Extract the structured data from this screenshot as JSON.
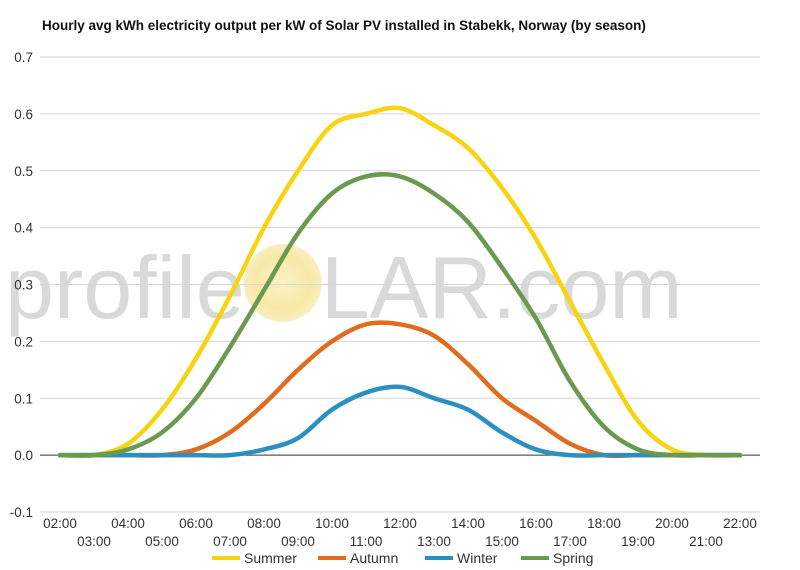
{
  "chart_data": {
    "type": "line",
    "title": "Hourly avg kWh electricity output per kW of Solar PV installed in Stabekk, Norway (by season)",
    "xlabel": "",
    "ylabel": "",
    "ylim": [
      -0.1,
      0.7
    ],
    "yticks": [
      -0.1,
      0.0,
      0.1,
      0.2,
      0.3,
      0.4,
      0.5,
      0.6,
      0.7
    ],
    "ytick_labels": [
      "-0.1",
      "0.0",
      "0.1",
      "0.2",
      "0.3",
      "0.4",
      "0.5",
      "0.6",
      "0.7"
    ],
    "x": [
      "02:00",
      "03:00",
      "04:00",
      "05:00",
      "06:00",
      "07:00",
      "08:00",
      "09:00",
      "10:00",
      "11:00",
      "12:00",
      "13:00",
      "14:00",
      "15:00",
      "16:00",
      "17:00",
      "18:00",
      "19:00",
      "20:00",
      "21:00",
      "22:00"
    ],
    "grid": true,
    "legend_position": "bottom",
    "series": [
      {
        "name": "Summer",
        "color": "#f7d40f",
        "values": [
          0.0,
          0.0,
          0.02,
          0.08,
          0.17,
          0.28,
          0.4,
          0.5,
          0.58,
          0.6,
          0.61,
          0.58,
          0.54,
          0.47,
          0.38,
          0.27,
          0.16,
          0.06,
          0.01,
          0.0,
          0.0
        ]
      },
      {
        "name": "Autumn",
        "color": "#e06c1e",
        "values": [
          0.0,
          0.0,
          0.0,
          0.0,
          0.01,
          0.04,
          0.09,
          0.15,
          0.2,
          0.23,
          0.23,
          0.21,
          0.16,
          0.1,
          0.06,
          0.02,
          0.0,
          0.0,
          0.0,
          0.0,
          0.0
        ]
      },
      {
        "name": "Winter",
        "color": "#2b8fc0",
        "values": [
          0.0,
          0.0,
          0.0,
          0.0,
          0.0,
          0.0,
          0.01,
          0.03,
          0.08,
          0.11,
          0.12,
          0.1,
          0.08,
          0.04,
          0.01,
          0.0,
          0.0,
          0.0,
          0.0,
          0.0,
          0.0
        ]
      },
      {
        "name": "Spring",
        "color": "#6a9a4f",
        "values": [
          0.0,
          0.0,
          0.01,
          0.04,
          0.1,
          0.19,
          0.29,
          0.39,
          0.46,
          0.49,
          0.49,
          0.46,
          0.41,
          0.33,
          0.24,
          0.13,
          0.05,
          0.01,
          0.0,
          0.0,
          0.0
        ]
      }
    ]
  },
  "watermark": {
    "prefix": "profile",
    "sun_letter": "S",
    "suffix": "LAR.com"
  }
}
